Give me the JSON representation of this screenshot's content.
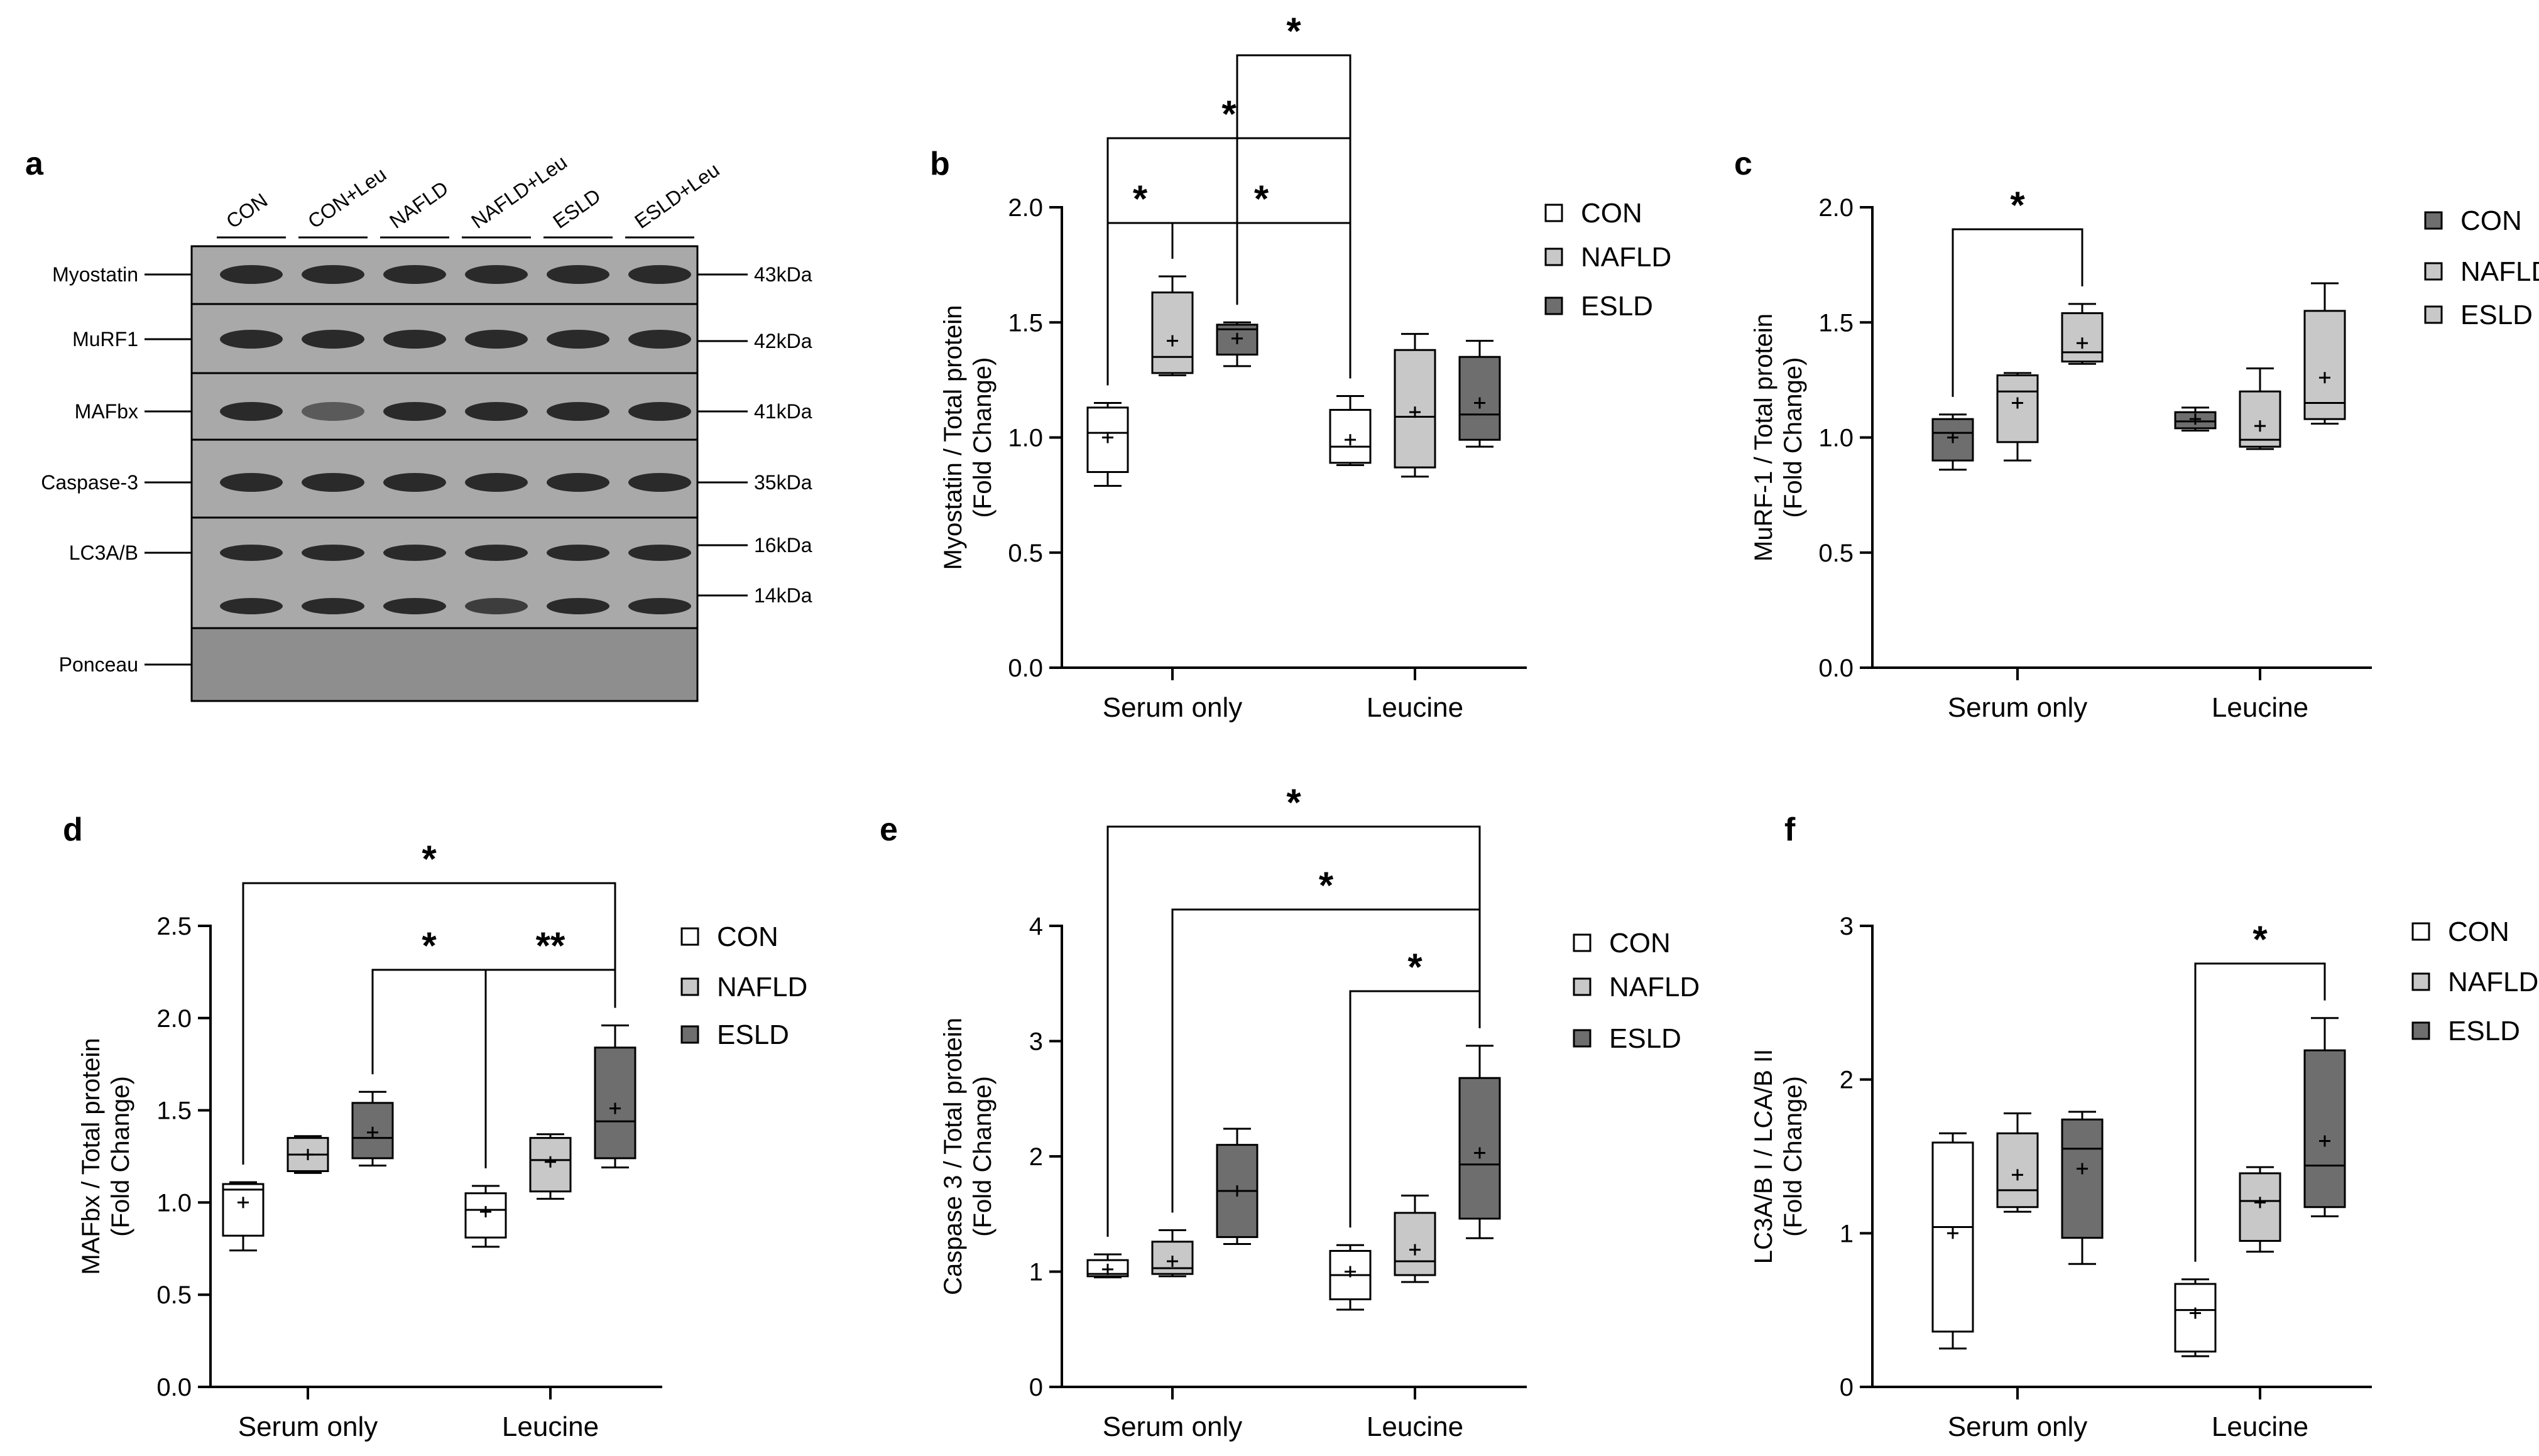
{
  "blot": {
    "panel": "a",
    "lanes": [
      "CON",
      "CON+Leu",
      "NAFLD",
      "NAFLD+Leu",
      "ESLD",
      "ESLD+Leu"
    ],
    "rows": [
      {
        "name": "Myostatin",
        "sizes": [
          "43kDa"
        ]
      },
      {
        "name": "MuRF1",
        "sizes": [
          "42kDa"
        ]
      },
      {
        "name": "MAFbx",
        "sizes": [
          "41kDa"
        ]
      },
      {
        "name": "Caspase-3",
        "sizes": [
          "35kDa"
        ]
      },
      {
        "name": "LC3A/B",
        "sizes": [
          "16kDa",
          "14kDa"
        ]
      },
      {
        "name": "Ponceau",
        "sizes": []
      }
    ]
  },
  "colors": {
    "CON": "#ffffff",
    "NAFLD": "#c8c8c8",
    "ESLD": "#6e6e6e",
    "axis": "#000000"
  },
  "chart_data": [
    {
      "panel": "b",
      "type": "box",
      "ylabel": [
        "Myostatin / Total protein",
        "(Fold Change)"
      ],
      "ylim": [
        0,
        2.0
      ],
      "yticks": [
        "0.0",
        "0.5",
        "1.0",
        "1.5",
        "2.0"
      ],
      "categories": [
        "Serum only",
        "Leucine"
      ],
      "legend": [
        "CON",
        "NAFLD",
        "ESLD"
      ],
      "series": [
        {
          "name": "CON",
          "boxes": [
            {
              "min": 0.79,
              "q1": 0.85,
              "median": 1.02,
              "q3": 1.13,
              "max": 1.15,
              "mean": 1.0
            },
            {
              "min": 0.88,
              "q1": 0.89,
              "median": 0.96,
              "q3": 1.12,
              "max": 1.18,
              "mean": 0.99
            }
          ]
        },
        {
          "name": "NAFLD",
          "boxes": [
            {
              "min": 1.27,
              "q1": 1.28,
              "median": 1.35,
              "q3": 1.63,
              "max": 1.7,
              "mean": 1.42
            },
            {
              "min": 0.83,
              "q1": 0.87,
              "median": 1.09,
              "q3": 1.38,
              "max": 1.45,
              "mean": 1.11
            }
          ]
        },
        {
          "name": "ESLD",
          "boxes": [
            {
              "min": 1.31,
              "q1": 1.36,
              "median": 1.47,
              "q3": 1.49,
              "max": 1.5,
              "mean": 1.43
            },
            {
              "min": 0.96,
              "q1": 0.99,
              "median": 1.1,
              "q3": 1.35,
              "max": 1.42,
              "mean": 1.15
            }
          ]
        }
      ],
      "significance": [
        {
          "from": [
            0,
            0
          ],
          "to": [
            0,
            1
          ],
          "label": "*"
        },
        {
          "from": [
            0,
            0
          ],
          "to": [
            1,
            0
          ],
          "label": "*"
        },
        {
          "from": [
            0,
            2
          ],
          "to": [
            1,
            0
          ],
          "label": "*"
        },
        {
          "from": [
            0,
            1
          ],
          "to": [
            1,
            0
          ],
          "label": "*"
        }
      ]
    },
    {
      "panel": "c",
      "type": "box",
      "ylabel": [
        "MuRF-1 / Total protein",
        "(Fold Change)"
      ],
      "ylim": [
        0,
        2.0
      ],
      "yticks": [
        "0.0",
        "0.5",
        "1.0",
        "1.5",
        "2.0"
      ],
      "categories": [
        "Serum only",
        "Leucine"
      ],
      "legend": [
        "CON",
        "NAFLD",
        "ESLD"
      ],
      "legend_colors": [
        "#6e6e6e",
        "#c8c8c8",
        "#c8c8c8"
      ],
      "series": [
        {
          "name": "CON",
          "color": "#6e6e6e",
          "boxes": [
            {
              "min": 0.86,
              "q1": 0.9,
              "median": 1.02,
              "q3": 1.08,
              "max": 1.1,
              "mean": 1.0
            },
            {
              "min": 1.03,
              "q1": 1.04,
              "median": 1.07,
              "q3": 1.11,
              "max": 1.13,
              "mean": 1.08
            }
          ]
        },
        {
          "name": "NAFLD",
          "color": "#c8c8c8",
          "boxes": [
            {
              "min": 0.9,
              "q1": 0.98,
              "median": 1.2,
              "q3": 1.27,
              "max": 1.28,
              "mean": 1.15
            },
            {
              "min": 0.95,
              "q1": 0.96,
              "median": 0.99,
              "q3": 1.2,
              "max": 1.3,
              "mean": 1.05
            }
          ]
        },
        {
          "name": "ESLD",
          "color": "#c8c8c8",
          "boxes": [
            {
              "min": 1.32,
              "q1": 1.33,
              "median": 1.37,
              "q3": 1.54,
              "max": 1.58,
              "mean": 1.41
            },
            {
              "min": 1.06,
              "q1": 1.08,
              "median": 1.15,
              "q3": 1.55,
              "max": 1.67,
              "mean": 1.26
            }
          ]
        }
      ],
      "significance": [
        {
          "from": [
            0,
            0
          ],
          "to": [
            0,
            2
          ],
          "label": "*"
        }
      ]
    },
    {
      "panel": "d",
      "type": "box",
      "ylabel": [
        "MAFbx / Total protein",
        "(Fold Change)"
      ],
      "ylim": [
        0,
        2.5
      ],
      "yticks": [
        "0.0",
        "0.5",
        "1.0",
        "1.5",
        "2.0",
        "2.5"
      ],
      "categories": [
        "Serum only",
        "Leucine"
      ],
      "legend": [
        "CON",
        "NAFLD",
        "ESLD"
      ],
      "series": [
        {
          "name": "CON",
          "boxes": [
            {
              "min": 0.74,
              "q1": 0.82,
              "median": 1.07,
              "q3": 1.1,
              "max": 1.11,
              "mean": 1.0
            },
            {
              "min": 0.76,
              "q1": 0.81,
              "median": 0.96,
              "q3": 1.05,
              "max": 1.09,
              "mean": 0.95
            }
          ]
        },
        {
          "name": "NAFLD",
          "boxes": [
            {
              "min": 1.16,
              "q1": 1.17,
              "median": 1.26,
              "q3": 1.35,
              "max": 1.36,
              "mean": 1.26
            },
            {
              "min": 1.02,
              "q1": 1.06,
              "median": 1.23,
              "q3": 1.35,
              "max": 1.37,
              "mean": 1.22
            }
          ]
        },
        {
          "name": "ESLD",
          "boxes": [
            {
              "min": 1.2,
              "q1": 1.24,
              "median": 1.35,
              "q3": 1.54,
              "max": 1.6,
              "mean": 1.38
            },
            {
              "min": 1.19,
              "q1": 1.24,
              "median": 1.44,
              "q3": 1.84,
              "max": 1.96,
              "mean": 1.51
            }
          ]
        }
      ],
      "significance": [
        {
          "from": [
            0,
            0
          ],
          "to": [
            1,
            2
          ],
          "label": "*"
        },
        {
          "from": [
            0,
            2
          ],
          "to": [
            1,
            0
          ],
          "label": "*"
        },
        {
          "from": [
            1,
            0
          ],
          "to": [
            1,
            2
          ],
          "label": "**"
        }
      ]
    },
    {
      "panel": "e",
      "type": "box",
      "ylabel": [
        "Caspase 3 / Total protein",
        "(Fold Change)"
      ],
      "ylim": [
        0,
        4
      ],
      "yticks": [
        "0",
        "1",
        "2",
        "3",
        "4"
      ],
      "categories": [
        "Serum only",
        "Leucine"
      ],
      "legend": [
        "CON",
        "NAFLD",
        "ESLD"
      ],
      "series": [
        {
          "name": "CON",
          "boxes": [
            {
              "min": 0.95,
              "q1": 0.96,
              "median": 0.98,
              "q3": 1.1,
              "max": 1.15,
              "mean": 1.02
            },
            {
              "min": 0.67,
              "q1": 0.76,
              "median": 0.97,
              "q3": 1.18,
              "max": 1.23,
              "mean": 1.0
            }
          ]
        },
        {
          "name": "NAFLD",
          "boxes": [
            {
              "min": 0.96,
              "q1": 0.98,
              "median": 1.03,
              "q3": 1.26,
              "max": 1.36,
              "mean": 1.09
            },
            {
              "min": 0.91,
              "q1": 0.97,
              "median": 1.09,
              "q3": 1.51,
              "max": 1.66,
              "mean": 1.19
            }
          ]
        },
        {
          "name": "ESLD",
          "boxes": [
            {
              "min": 1.24,
              "q1": 1.3,
              "median": 1.7,
              "q3": 2.1,
              "max": 2.24,
              "mean": 1.7
            },
            {
              "min": 1.29,
              "q1": 1.46,
              "median": 1.93,
              "q3": 2.68,
              "max": 2.96,
              "mean": 2.03
            }
          ]
        }
      ],
      "significance": [
        {
          "from": [
            0,
            0
          ],
          "to": [
            1,
            2
          ],
          "label": "*"
        },
        {
          "from": [
            0,
            1
          ],
          "to": [
            1,
            2
          ],
          "label": "*"
        },
        {
          "from": [
            1,
            0
          ],
          "to": [
            1,
            2
          ],
          "label": "*"
        }
      ]
    },
    {
      "panel": "f",
      "type": "box",
      "ylabel": [
        "LC3A/B I / LCA/B II",
        "(Fold Change)"
      ],
      "ylim": [
        0,
        3
      ],
      "yticks": [
        "0",
        "1",
        "2",
        "3"
      ],
      "categories": [
        "Serum only",
        "Leucine"
      ],
      "legend": [
        "CON",
        "NAFLD",
        "ESLD"
      ],
      "series": [
        {
          "name": "CON",
          "boxes": [
            {
              "min": 0.25,
              "q1": 0.36,
              "median": 1.04,
              "q3": 1.59,
              "max": 1.65,
              "mean": 1.0
            },
            {
              "min": 0.2,
              "q1": 0.23,
              "median": 0.5,
              "q3": 0.67,
              "max": 0.7,
              "mean": 0.48
            }
          ]
        },
        {
          "name": "NAFLD",
          "boxes": [
            {
              "min": 1.14,
              "q1": 1.17,
              "median": 1.28,
              "q3": 1.65,
              "max": 1.78,
              "mean": 1.38
            },
            {
              "min": 0.88,
              "q1": 0.95,
              "median": 1.21,
              "q3": 1.39,
              "max": 1.43,
              "mean": 1.2
            }
          ]
        },
        {
          "name": "ESLD",
          "boxes": [
            {
              "min": 0.8,
              "q1": 0.97,
              "median": 1.55,
              "q3": 1.74,
              "max": 1.79,
              "mean": 1.42
            },
            {
              "min": 1.11,
              "q1": 1.17,
              "median": 1.44,
              "q3": 2.19,
              "max": 2.4,
              "mean": 1.6
            }
          ]
        }
      ],
      "significance": [
        {
          "from": [
            1,
            0
          ],
          "to": [
            1,
            2
          ],
          "label": "*"
        }
      ]
    }
  ]
}
